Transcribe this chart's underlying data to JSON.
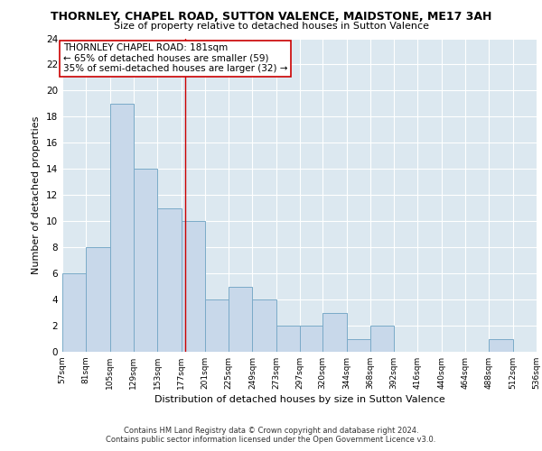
{
  "title": "THORNLEY, CHAPEL ROAD, SUTTON VALENCE, MAIDSTONE, ME17 3AH",
  "subtitle": "Size of property relative to detached houses in Sutton Valence",
  "xlabel": "Distribution of detached houses by size in Sutton Valence",
  "ylabel": "Number of detached properties",
  "bin_edges": [
    57,
    81,
    105,
    129,
    153,
    177,
    201,
    225,
    249,
    273,
    297,
    320,
    344,
    368,
    392,
    416,
    440,
    464,
    488,
    512,
    536
  ],
  "bar_heights": [
    6,
    8,
    19,
    14,
    11,
    10,
    4,
    5,
    4,
    2,
    2,
    3,
    1,
    2,
    0,
    0,
    0,
    0,
    1,
    0
  ],
  "tick_labels": [
    "57sqm",
    "81sqm",
    "105sqm",
    "129sqm",
    "153sqm",
    "177sqm",
    "201sqm",
    "225sqm",
    "249sqm",
    "273sqm",
    "297sqm",
    "320sqm",
    "344sqm",
    "368sqm",
    "392sqm",
    "416sqm",
    "440sqm",
    "464sqm",
    "488sqm",
    "512sqm",
    "536sqm"
  ],
  "bar_color": "#c8d8ea",
  "bar_edge_color": "#7aaac8",
  "property_line_x": 181,
  "property_line_color": "#cc0000",
  "annotation_line1": "THORNLEY CHAPEL ROAD: 181sqm",
  "annotation_line2": "← 65% of detached houses are smaller (59)",
  "annotation_line3": "35% of semi-detached houses are larger (32) →",
  "ylim": [
    0,
    24
  ],
  "yticks": [
    0,
    2,
    4,
    6,
    8,
    10,
    12,
    14,
    16,
    18,
    20,
    22,
    24
  ],
  "plot_bg_color": "#dce8f0",
  "footer_line1": "Contains HM Land Registry data © Crown copyright and database right 2024.",
  "footer_line2": "Contains public sector information licensed under the Open Government Licence v3.0."
}
